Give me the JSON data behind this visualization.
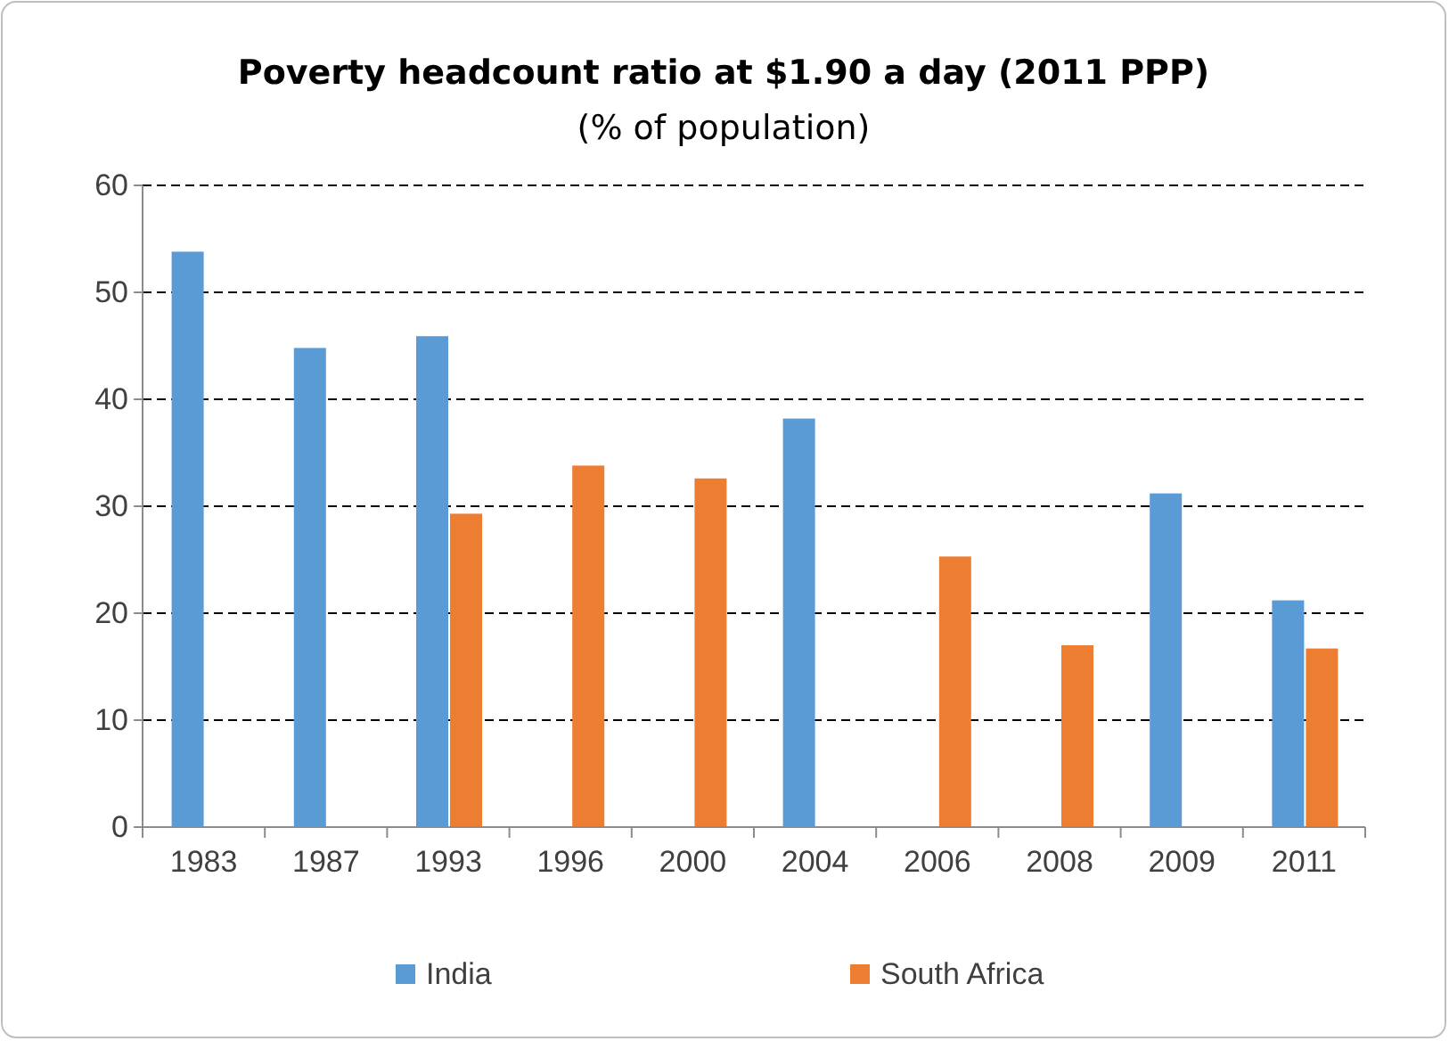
{
  "chart_data": {
    "type": "bar",
    "title": "Poverty headcount ratio at $1.90 a day (2011 PPP)",
    "subtitle": "(% of population)",
    "categories": [
      "1983",
      "1987",
      "1993",
      "1996",
      "2000",
      "2004",
      "2006",
      "2008",
      "2009",
      "2011"
    ],
    "series": [
      {
        "name": "India",
        "color": "#5b9bd5",
        "values": [
          53.8,
          44.8,
          45.9,
          null,
          null,
          38.2,
          null,
          null,
          31.2,
          21.2
        ]
      },
      {
        "name": "South Africa",
        "color": "#ed7d31",
        "values": [
          null,
          null,
          29.3,
          33.8,
          32.6,
          null,
          25.3,
          17.0,
          null,
          16.7
        ]
      }
    ],
    "ylim": [
      0,
      60
    ],
    "yticks": [
      0,
      10,
      20,
      30,
      40,
      50,
      60
    ],
    "grid": "y",
    "legend": "bottom"
  }
}
